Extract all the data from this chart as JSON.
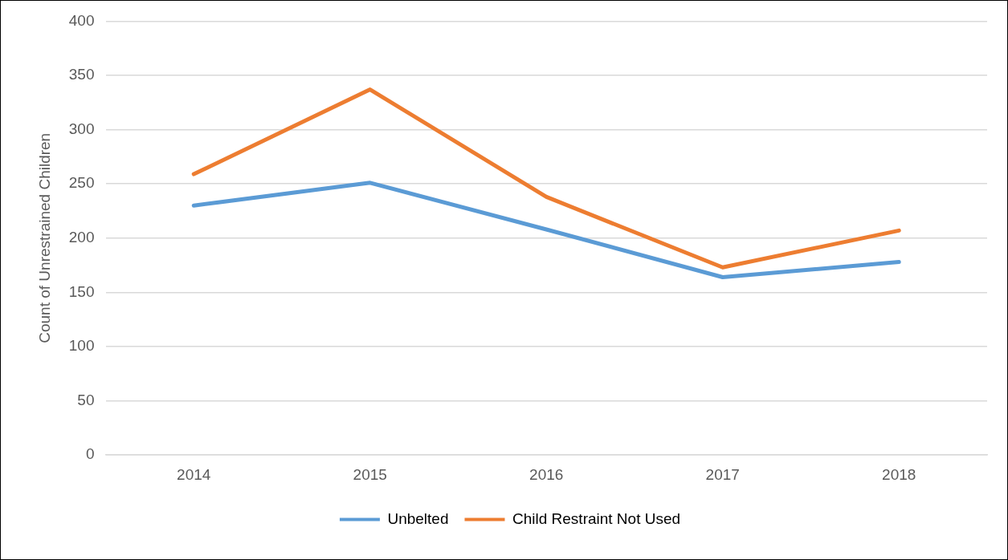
{
  "chart_data": {
    "type": "line",
    "ylabel": "Count of Unrestrained Children",
    "categories": [
      "2014",
      "2015",
      "2016",
      "2017",
      "2018"
    ],
    "series": [
      {
        "name": "Unbelted",
        "color": "#5b9bd5",
        "values": [
          230,
          251,
          208,
          164,
          178
        ]
      },
      {
        "name": "Child Restraint Not Used",
        "color": "#ed7d31",
        "values": [
          259,
          337,
          238,
          173,
          207
        ]
      }
    ],
    "ylim": [
      0,
      400
    ],
    "yticks": [
      0,
      50,
      100,
      150,
      200,
      250,
      300,
      350,
      400
    ],
    "grid": "y",
    "legend": "bottom",
    "marker": "none",
    "line_style": "solid"
  }
}
